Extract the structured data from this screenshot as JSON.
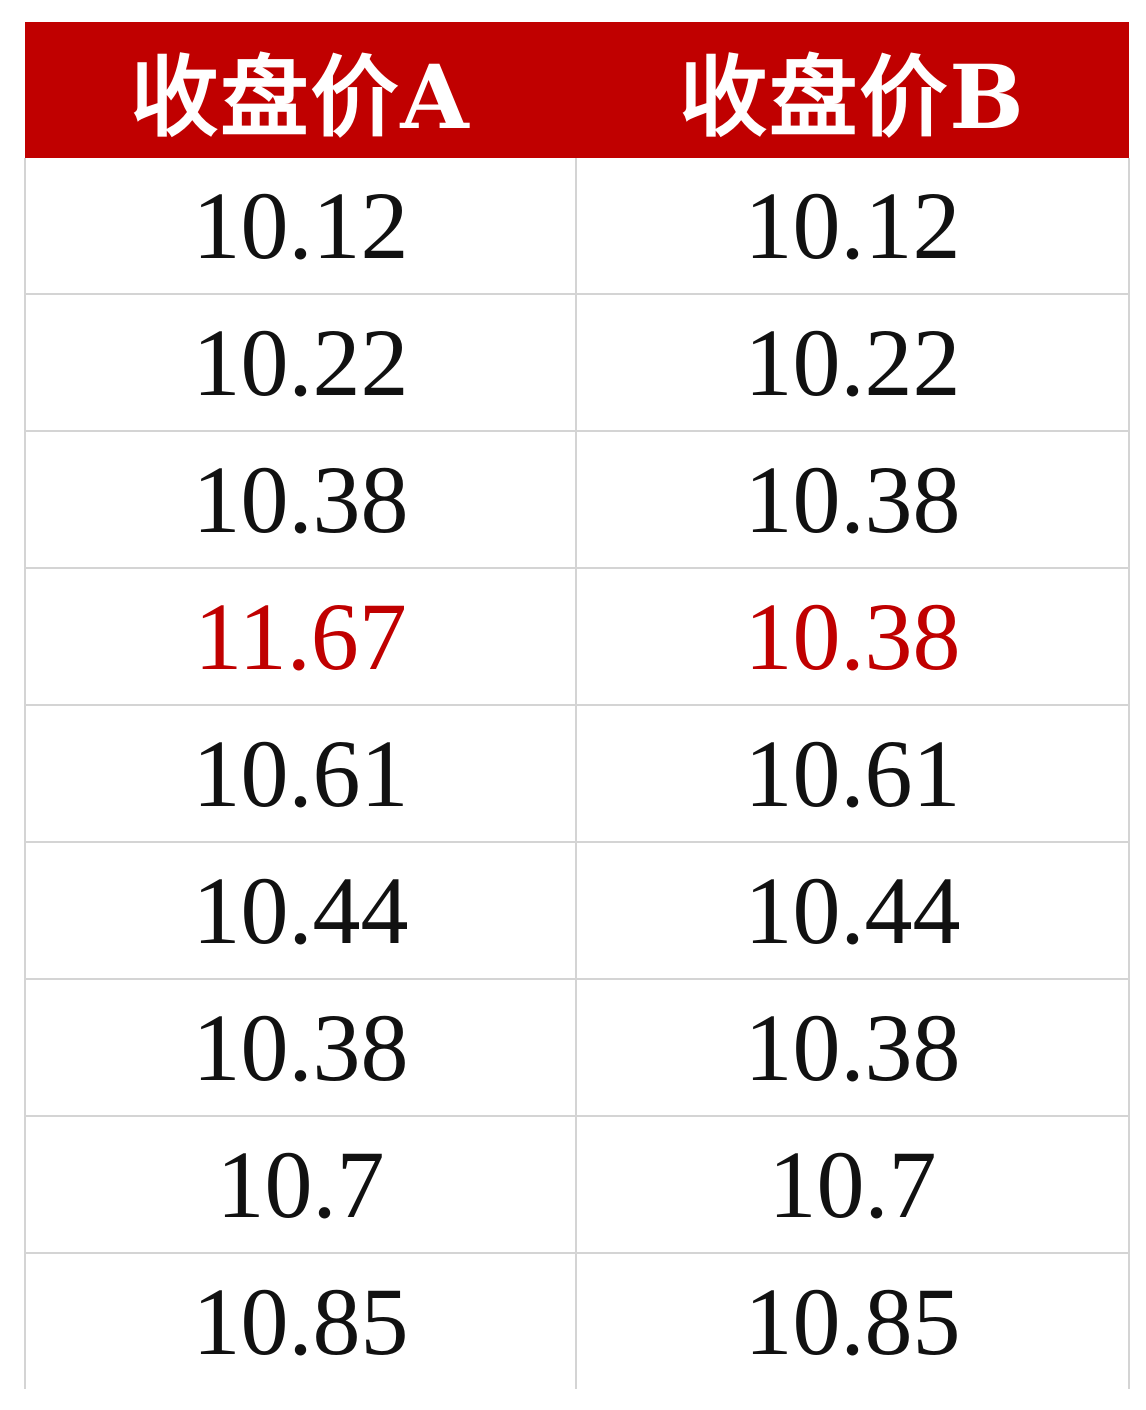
{
  "colors": {
    "header_bg": "#c00000",
    "header_text": "#ffffff",
    "cell_text": "#111111",
    "highlight_text": "#c00000",
    "grid_line": "#d4d4d4"
  },
  "table": {
    "headers": [
      "收盘价A",
      "收盘价B"
    ],
    "rows": [
      {
        "a": "10.12",
        "b": "10.12",
        "highlight": false
      },
      {
        "a": "10.22",
        "b": "10.22",
        "highlight": false
      },
      {
        "a": "10.38",
        "b": "10.38",
        "highlight": false
      },
      {
        "a": "11.67",
        "b": "10.38",
        "highlight": true
      },
      {
        "a": "10.61",
        "b": "10.61",
        "highlight": false
      },
      {
        "a": "10.44",
        "b": "10.44",
        "highlight": false
      },
      {
        "a": "10.38",
        "b": "10.38",
        "highlight": false
      },
      {
        "a": "10.7",
        "b": "10.7",
        "highlight": false
      },
      {
        "a": "10.85",
        "b": "10.85",
        "highlight": false
      }
    ]
  }
}
